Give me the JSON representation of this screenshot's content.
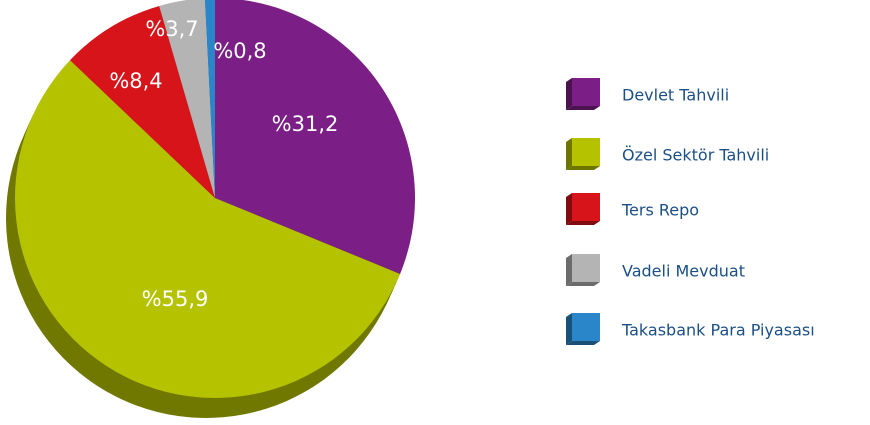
{
  "chart_data": {
    "type": "pie",
    "categories": [
      "Devlet Tahvili",
      "Özel Sektör Tahvili",
      "Ters Repo",
      "Vadeli Mevduat",
      "Takasbank Para Piyasası"
    ],
    "values": [
      31.2,
      55.9,
      8.4,
      3.7,
      0.8
    ],
    "value_labels": [
      "%31,2",
      "%55,9",
      "%8,4",
      "%3,7",
      "%0,8"
    ],
    "colors": [
      "#7b1f86",
      "#b5c200",
      "#d7141a",
      "#b4b4b4",
      "#2a86c8"
    ],
    "legend": "right"
  }
}
